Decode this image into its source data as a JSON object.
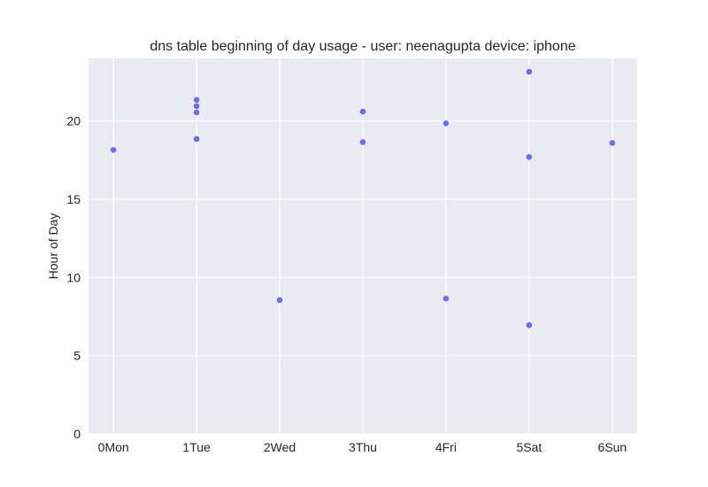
{
  "chart_data": {
    "type": "scatter",
    "title": "dns table beginning of day usage -  user: neenagupta device: iphone",
    "xlabel": "",
    "ylabel": "Hour of Day",
    "categories": [
      "0Mon",
      "1Tue",
      "2Wed",
      "3Thu",
      "4Fri",
      "5Sat",
      "6Sun"
    ],
    "yticks": [
      0,
      5,
      10,
      15,
      20
    ],
    "ylim": [
      0,
      24
    ],
    "grid": true,
    "series": [
      {
        "color": "#6a6ff0",
        "points": [
          {
            "x": "0Mon",
            "y": 18.15
          },
          {
            "x": "1Tue",
            "y": 21.35
          },
          {
            "x": "1Tue",
            "y": 20.95
          },
          {
            "x": "1Tue",
            "y": 20.55
          },
          {
            "x": "1Tue",
            "y": 18.85
          },
          {
            "x": "2Wed",
            "y": 8.55
          },
          {
            "x": "3Thu",
            "y": 20.6
          },
          {
            "x": "3Thu",
            "y": 18.65
          },
          {
            "x": "4Fri",
            "y": 19.85
          },
          {
            "x": "4Fri",
            "y": 8.65
          },
          {
            "x": "5Sat",
            "y": 23.15
          },
          {
            "x": "5Sat",
            "y": 17.7
          },
          {
            "x": "5Sat",
            "y": 6.95
          },
          {
            "x": "6Sun",
            "y": 18.6
          }
        ]
      }
    ]
  },
  "colors": {
    "plot_background": "#eaeaf2",
    "grid": "#ffffff",
    "text": "#262626",
    "marker": "#6a6ff0"
  }
}
